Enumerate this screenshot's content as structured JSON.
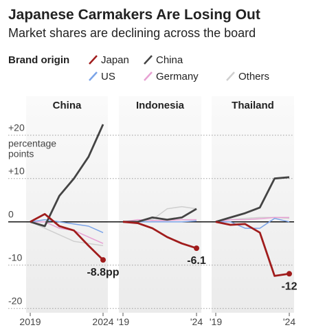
{
  "title": "Japanese Carmakers Are Losing Out",
  "subtitle": "Market shares are declining across the board",
  "legend_title": "Brand origin",
  "chart_data": [
    {
      "type": "line",
      "title": "China",
      "x": [
        2019,
        2020,
        2021,
        2022,
        2023,
        2024
      ],
      "xlim": [
        2019,
        2024
      ],
      "xticks": [
        {
          "value": 2019,
          "label": "2019"
        },
        {
          "value": 2024,
          "label": "2024"
        }
      ],
      "ylim": [
        -21,
        29
      ],
      "yticks": [
        {
          "value": -20,
          "label": "-20"
        },
        {
          "value": -10,
          "label": "-10"
        },
        0,
        {
          "value": 10,
          "label": "+10"
        },
        {
          "value": 20,
          "label": "+20"
        }
      ],
      "y_label": [
        "percentage",
        "points"
      ],
      "series": [
        {
          "name": "Japan",
          "color": "#a01c1c",
          "values": [
            0,
            1.8,
            -1,
            -2,
            -5.5,
            -8.8
          ],
          "value_labels": [
            null,
            null,
            null,
            null,
            null,
            "-8.8pp"
          ]
        },
        {
          "name": "China",
          "color": "#444444",
          "values": [
            0,
            -1,
            6,
            10,
            15,
            22.5
          ]
        },
        {
          "name": "US",
          "color": "#7aa3e8",
          "values": [
            0,
            0.5,
            0,
            -0.5,
            -1,
            -2.5
          ]
        },
        {
          "name": "Germany",
          "color": "#e7a1d3",
          "values": [
            0,
            0,
            -1.5,
            -2,
            -3.5,
            -5
          ]
        },
        {
          "name": "Others",
          "color": "#cfcfcf",
          "values": [
            0,
            -1.5,
            -3,
            -4.5,
            -5,
            -5.5
          ]
        }
      ]
    },
    {
      "type": "line",
      "title": "Indonesia",
      "x": [
        2019,
        2020,
        2021,
        2022,
        2023,
        2024
      ],
      "xlim": [
        2019,
        2024
      ],
      "xticks": [
        {
          "value": 2019,
          "label": "'19"
        },
        {
          "value": 2024,
          "label": "'24"
        }
      ],
      "ylim": [
        -21,
        29
      ],
      "series": [
        {
          "name": "Japan",
          "color": "#a01c1c",
          "values": [
            0,
            -0.3,
            -1.5,
            -3.5,
            -5,
            -6.1
          ],
          "value_labels": [
            null,
            null,
            null,
            null,
            null,
            "-6.1"
          ]
        },
        {
          "name": "China",
          "color": "#444444",
          "values": [
            0,
            0,
            1,
            0.5,
            1,
            3
          ]
        },
        {
          "name": "US",
          "color": "#7aa3e8",
          "values": [
            0,
            0,
            0,
            0,
            0,
            0.2
          ]
        },
        {
          "name": "Germany",
          "color": "#e7a1d3",
          "values": [
            0,
            0.5,
            0.3,
            0.3,
            0.5,
            0.5
          ]
        },
        {
          "name": "Others",
          "color": "#cfcfcf",
          "values": [
            0,
            0,
            0.5,
            3,
            3.5,
            3
          ]
        }
      ]
    },
    {
      "type": "line",
      "title": "Thailand",
      "x": [
        2019,
        2020,
        2021,
        2022,
        2023,
        2024
      ],
      "xlim": [
        2019,
        2024
      ],
      "xticks": [
        {
          "value": 2019,
          "label": "'19"
        },
        {
          "value": 2024,
          "label": "'24"
        }
      ],
      "ylim": [
        -21,
        29
      ],
      "series": [
        {
          "name": "Japan",
          "color": "#a01c1c",
          "values": [
            0,
            -0.7,
            -0.5,
            -2.5,
            -12.5,
            -12
          ],
          "value_labels": [
            null,
            null,
            null,
            null,
            null,
            "-12"
          ]
        },
        {
          "name": "China",
          "color": "#444444",
          "values": [
            0,
            1,
            2,
            3.3,
            10,
            10.3
          ]
        },
        {
          "name": "US",
          "color": "#7aa3e8",
          "values": [
            0,
            0,
            -1.5,
            -1.5,
            0.8,
            0
          ]
        },
        {
          "name": "Germany",
          "color": "#e7a1d3",
          "values": [
            0,
            0.5,
            0.5,
            0.7,
            1,
            1
          ]
        },
        {
          "name": "Others",
          "color": "#cfcfcf",
          "values": [
            0,
            0.5,
            0.8,
            1,
            1,
            0.8
          ]
        }
      ]
    }
  ]
}
